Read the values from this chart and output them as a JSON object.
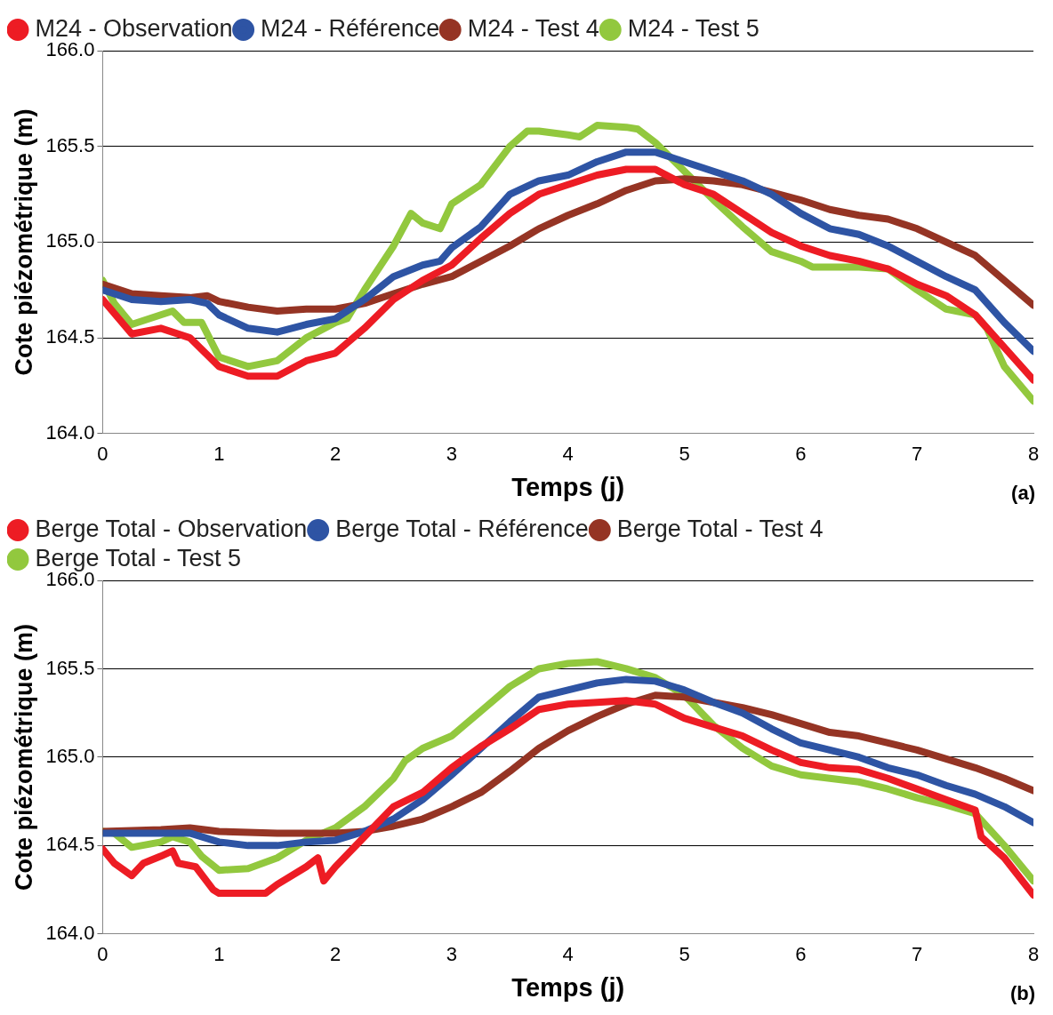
{
  "chart_data": [
    {
      "type": "line",
      "xlabel": "Temps (j)",
      "ylabel": "Cote piézométrique (m)",
      "annotations": [
        "(a)"
      ],
      "xlim": [
        0,
        8
      ],
      "xticks": [
        0,
        1,
        2,
        3,
        4,
        5,
        6,
        7,
        8
      ],
      "ylim": [
        164,
        166
      ],
      "yticks": [
        {
          "value": 164,
          "label": "164.0"
        },
        {
          "value": 164.5,
          "label": "164.5"
        },
        {
          "value": 165,
          "label": "165.0"
        },
        {
          "value": 165.5,
          "label": "165.5"
        },
        {
          "value": 166,
          "label": "166.0"
        }
      ],
      "grid": "y",
      "legend": "top left",
      "marker": "none",
      "line_style": "solid",
      "series": [
        {
          "name": "M24 - Observation",
          "color": "#ed1c24",
          "x": [
            0,
            0.25,
            0.5,
            0.75,
            1,
            1.25,
            1.5,
            1.75,
            2,
            2.25,
            2.5,
            2.75,
            3,
            3.25,
            3.5,
            3.75,
            4,
            4.25,
            4.5,
            4.75,
            5,
            5.25,
            5.5,
            5.75,
            6,
            6.25,
            6.5,
            6.75,
            7,
            7.25,
            7.5,
            7.75,
            8
          ],
          "values": [
            164.7,
            164.52,
            164.55,
            164.5,
            164.35,
            164.3,
            164.3,
            164.38,
            164.42,
            164.55,
            164.7,
            164.8,
            164.88,
            165.02,
            165.15,
            165.25,
            165.3,
            165.35,
            165.38,
            165.38,
            165.3,
            165.25,
            165.15,
            165.05,
            164.98,
            164.93,
            164.9,
            164.86,
            164.78,
            164.72,
            164.62,
            164.45,
            164.28
          ]
        },
        {
          "name": "M24 - Référence",
          "color": "#2e54a4",
          "x": [
            0,
            0.25,
            0.5,
            0.75,
            0.9,
            1,
            1.25,
            1.5,
            1.75,
            2,
            2.25,
            2.5,
            2.75,
            2.9,
            3,
            3.25,
            3.5,
            3.75,
            4,
            4.25,
            4.5,
            4.75,
            5,
            5.25,
            5.5,
            5.75,
            6,
            6.25,
            6.5,
            6.75,
            7,
            7.25,
            7.5,
            7.75,
            8
          ],
          "values": [
            164.75,
            164.7,
            164.69,
            164.7,
            164.68,
            164.62,
            164.55,
            164.53,
            164.57,
            164.6,
            164.7,
            164.82,
            164.88,
            164.9,
            164.97,
            165.08,
            165.25,
            165.32,
            165.35,
            165.42,
            165.47,
            165.47,
            165.42,
            165.37,
            165.32,
            165.25,
            165.15,
            165.07,
            165.04,
            164.98,
            164.9,
            164.82,
            164.75,
            164.58,
            164.43
          ]
        },
        {
          "name": "M24 - Test 4",
          "color": "#953424",
          "x": [
            0,
            0.25,
            0.5,
            0.75,
            0.9,
            1,
            1.25,
            1.5,
            1.75,
            2,
            2.25,
            2.5,
            2.75,
            3,
            3.25,
            3.5,
            3.75,
            4,
            4.25,
            4.5,
            4.75,
            5,
            5.25,
            5.5,
            5.75,
            6,
            6.25,
            6.5,
            6.75,
            7,
            7.25,
            7.5,
            7.75,
            8
          ],
          "values": [
            164.78,
            164.73,
            164.72,
            164.71,
            164.72,
            164.69,
            164.66,
            164.64,
            164.65,
            164.65,
            164.68,
            164.73,
            164.78,
            164.82,
            164.9,
            164.98,
            165.07,
            165.14,
            165.2,
            165.27,
            165.32,
            165.33,
            165.32,
            165.3,
            165.26,
            165.22,
            165.17,
            165.14,
            165.12,
            165.07,
            165,
            164.93,
            164.8,
            164.67
          ]
        },
        {
          "name": "M24 - Test 5",
          "color": "#92c83e",
          "x": [
            0,
            0.1,
            0.25,
            0.5,
            0.6,
            0.7,
            0.85,
            1,
            1.25,
            1.5,
            1.75,
            2,
            2.1,
            2.25,
            2.5,
            2.65,
            2.75,
            2.9,
            3,
            3.25,
            3.5,
            3.65,
            3.75,
            4,
            4.1,
            4.25,
            4.5,
            4.6,
            4.75,
            5,
            5.25,
            5.5,
            5.75,
            6,
            6.1,
            6.5,
            6.75,
            7,
            7.25,
            7.5,
            7.6,
            7.75,
            8
          ],
          "values": [
            164.8,
            164.68,
            164.57,
            164.62,
            164.64,
            164.58,
            164.58,
            164.4,
            164.35,
            164.38,
            164.5,
            164.58,
            164.6,
            164.75,
            164.98,
            165.15,
            165.1,
            165.07,
            165.2,
            165.3,
            165.5,
            165.58,
            165.58,
            165.56,
            165.55,
            165.61,
            165.6,
            165.59,
            165.52,
            165.37,
            165.22,
            165.08,
            164.95,
            164.9,
            164.87,
            164.87,
            164.86,
            164.75,
            164.65,
            164.62,
            164.55,
            164.35,
            164.17
          ]
        }
      ]
    },
    {
      "type": "line",
      "xlabel": "Temps (j)",
      "ylabel": "Cote piézométrique (m)",
      "annotations": [
        "(b)"
      ],
      "xlim": [
        0,
        8
      ],
      "xticks": [
        0,
        1,
        2,
        3,
        4,
        5,
        6,
        7,
        8
      ],
      "ylim": [
        164,
        166
      ],
      "yticks": [
        {
          "value": 164,
          "label": "164.0"
        },
        {
          "value": 164.5,
          "label": "164.5"
        },
        {
          "value": 165,
          "label": "165.0"
        },
        {
          "value": 165.5,
          "label": "165.5"
        },
        {
          "value": 166,
          "label": "166.0"
        }
      ],
      "grid": "y",
      "legend": "top left",
      "marker": "none",
      "line_style": "solid",
      "series": [
        {
          "name": "Berge Total - Observation",
          "color": "#ed1c24",
          "x": [
            0,
            0.1,
            0.25,
            0.35,
            0.5,
            0.6,
            0.65,
            0.8,
            0.95,
            1,
            1.4,
            1.5,
            1.75,
            1.85,
            1.9,
            2,
            2.25,
            2.5,
            2.75,
            3,
            3.25,
            3.5,
            3.75,
            4,
            4.25,
            4.5,
            4.75,
            5,
            5.25,
            5.5,
            5.75,
            6,
            6.25,
            6.5,
            6.75,
            7,
            7.25,
            7.5,
            7.55,
            7.75,
            8
          ],
          "values": [
            164.48,
            164.4,
            164.33,
            164.4,
            164.44,
            164.47,
            164.4,
            164.38,
            164.25,
            164.23,
            164.23,
            164.28,
            164.38,
            164.43,
            164.3,
            164.38,
            164.55,
            164.72,
            164.8,
            164.94,
            165.06,
            165.16,
            165.27,
            165.3,
            165.31,
            165.32,
            165.3,
            165.22,
            165.17,
            165.12,
            165.04,
            164.97,
            164.94,
            164.93,
            164.88,
            164.82,
            164.76,
            164.7,
            164.55,
            164.43,
            164.22
          ]
        },
        {
          "name": "Berge Total - Référence",
          "color": "#2e54a4",
          "x": [
            0,
            0.5,
            0.75,
            1,
            1.25,
            1.5,
            1.75,
            2,
            2.25,
            2.5,
            2.75,
            3,
            3.25,
            3.5,
            3.75,
            4,
            4.25,
            4.5,
            4.75,
            5,
            5.25,
            5.5,
            5.75,
            6,
            6.25,
            6.5,
            6.75,
            7,
            7.25,
            7.5,
            7.75,
            8
          ],
          "values": [
            164.57,
            164.57,
            164.57,
            164.52,
            164.5,
            164.5,
            164.52,
            164.53,
            164.58,
            164.65,
            164.76,
            164.9,
            165.05,
            165.2,
            165.34,
            165.38,
            165.42,
            165.44,
            165.43,
            165.38,
            165.31,
            165.25,
            165.16,
            165.08,
            165.04,
            165,
            164.94,
            164.9,
            164.84,
            164.79,
            164.72,
            164.63
          ]
        },
        {
          "name": "Berge Total - Test 4",
          "color": "#953424",
          "x": [
            0,
            0.5,
            0.75,
            1,
            1.5,
            2,
            2.25,
            2.5,
            2.75,
            3,
            3.25,
            3.5,
            3.75,
            4,
            4.25,
            4.5,
            4.75,
            5,
            5.25,
            5.5,
            5.75,
            6,
            6.25,
            6.5,
            6.75,
            7,
            7.25,
            7.5,
            7.75,
            8
          ],
          "values": [
            164.58,
            164.59,
            164.6,
            164.58,
            164.57,
            164.57,
            164.58,
            164.61,
            164.65,
            164.72,
            164.8,
            164.92,
            165.05,
            165.15,
            165.23,
            165.3,
            165.35,
            165.34,
            165.31,
            165.28,
            165.24,
            165.19,
            165.14,
            165.12,
            165.08,
            165.04,
            164.99,
            164.94,
            164.88,
            164.81
          ]
        },
        {
          "name": "Berge Total - Test 5",
          "color": "#92c83e",
          "x": [
            0,
            0.1,
            0.25,
            0.5,
            0.6,
            0.75,
            0.85,
            1,
            1.25,
            1.5,
            1.75,
            2,
            2.25,
            2.5,
            2.6,
            2.75,
            3,
            3.25,
            3.5,
            3.75,
            4,
            4.25,
            4.5,
            4.75,
            5,
            5.25,
            5.5,
            5.75,
            6,
            6.25,
            6.5,
            6.75,
            7,
            7.25,
            7.5,
            7.75,
            8
          ],
          "values": [
            164.58,
            164.57,
            164.49,
            164.52,
            164.55,
            164.52,
            164.44,
            164.36,
            164.37,
            164.43,
            164.53,
            164.6,
            164.72,
            164.88,
            164.98,
            165.05,
            165.12,
            165.26,
            165.4,
            165.5,
            165.53,
            165.54,
            165.5,
            165.45,
            165.35,
            165.18,
            165.05,
            164.95,
            164.9,
            164.88,
            164.86,
            164.82,
            164.77,
            164.73,
            164.68,
            164.5,
            164.3
          ]
        }
      ]
    }
  ]
}
